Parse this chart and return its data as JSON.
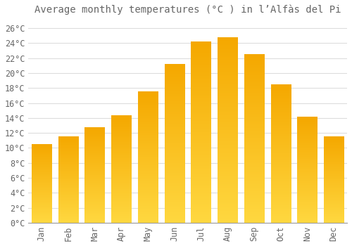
{
  "title": "Average monthly temperatures (°C ) in l’Alfàs del Pi",
  "months": [
    "Jan",
    "Feb",
    "Mar",
    "Apr",
    "May",
    "Jun",
    "Jul",
    "Aug",
    "Sep",
    "Oct",
    "Nov",
    "Dec"
  ],
  "temperatures": [
    10.5,
    11.5,
    12.7,
    14.3,
    17.5,
    21.2,
    24.2,
    24.8,
    22.5,
    18.5,
    14.1,
    11.5
  ],
  "bar_color_top": "#F5A800",
  "bar_color_bottom": "#FFD840",
  "background_color": "#FFFFFF",
  "grid_color": "#DDDDDD",
  "text_color": "#666666",
  "ylim": [
    0,
    27
  ],
  "yticks": [
    0,
    2,
    4,
    6,
    8,
    10,
    12,
    14,
    16,
    18,
    20,
    22,
    24,
    26
  ],
  "title_fontsize": 10,
  "tick_fontsize": 8.5,
  "bar_width": 0.75
}
